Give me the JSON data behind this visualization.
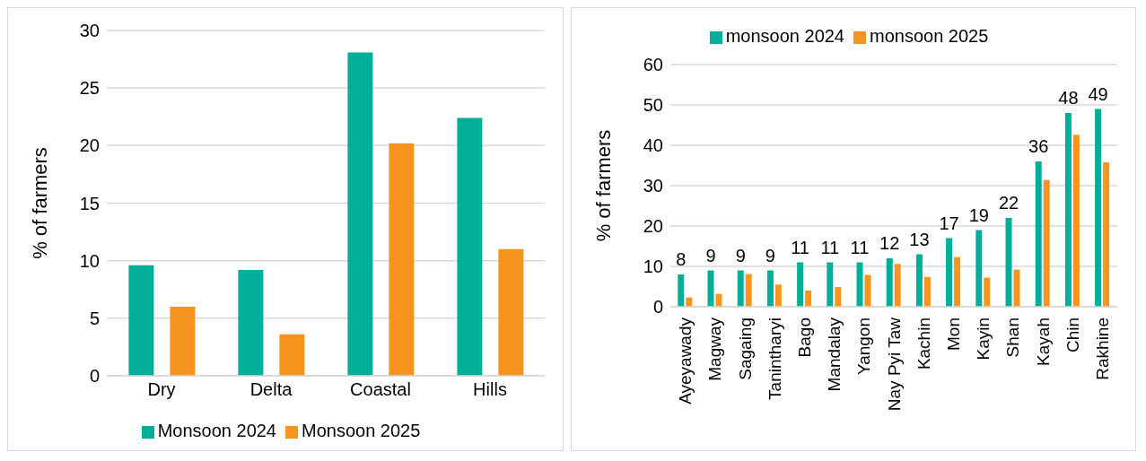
{
  "chart_data": [
    {
      "type": "bar",
      "categories": [
        "Dry",
        "Delta",
        "Coastal",
        "Hills"
      ],
      "ylabel": "% of farmers",
      "ylim": [
        0,
        30
      ],
      "yticks": [
        0,
        5,
        10,
        15,
        20,
        25,
        30
      ],
      "grid": "y",
      "legend": "bottom",
      "series": [
        {
          "name": "Monsoon 2024",
          "color": "#00ae9a",
          "values": [
            9.6,
            9.2,
            28.1,
            22.4
          ]
        },
        {
          "name": "Monsoon 2025",
          "color": "#f7941d",
          "values": [
            6.0,
            3.6,
            20.2,
            11.0
          ]
        }
      ]
    },
    {
      "type": "bar",
      "categories": [
        "Ayeyawady",
        "Magway",
        "Sagaing",
        "Tanintharyi",
        "Bago",
        "Mandalay",
        "Yangon",
        "Nay Pyi Taw",
        "Kachin",
        "Mon",
        "Kayin",
        "Shan",
        "Kayah",
        "Chin",
        "Rakhine"
      ],
      "ylabel": "% of farmers",
      "ylim": [
        0,
        60
      ],
      "yticks": [
        0,
        10,
        20,
        30,
        40,
        50,
        60
      ],
      "grid": "y",
      "legend": "top",
      "series": [
        {
          "name": "monsoon 2024",
          "color": "#00ae9a",
          "values": [
            8,
            9,
            9,
            9,
            11,
            11,
            11,
            12,
            13,
            17,
            19,
            22,
            36,
            48,
            49
          ],
          "value_labels": [
            "8",
            "9",
            "9",
            "9",
            "11",
            "11",
            "11",
            "12",
            "13",
            "17",
            "19",
            "22",
            "36",
            "48",
            "49"
          ]
        },
        {
          "name": "monsoon 2025",
          "color": "#f7941d",
          "values": [
            2.3,
            3.2,
            8.1,
            5.5,
            4.0,
            4.9,
            7.9,
            10.6,
            7.4,
            12.3,
            7.2,
            9.2,
            31.4,
            42.6,
            35.8
          ]
        }
      ]
    }
  ]
}
